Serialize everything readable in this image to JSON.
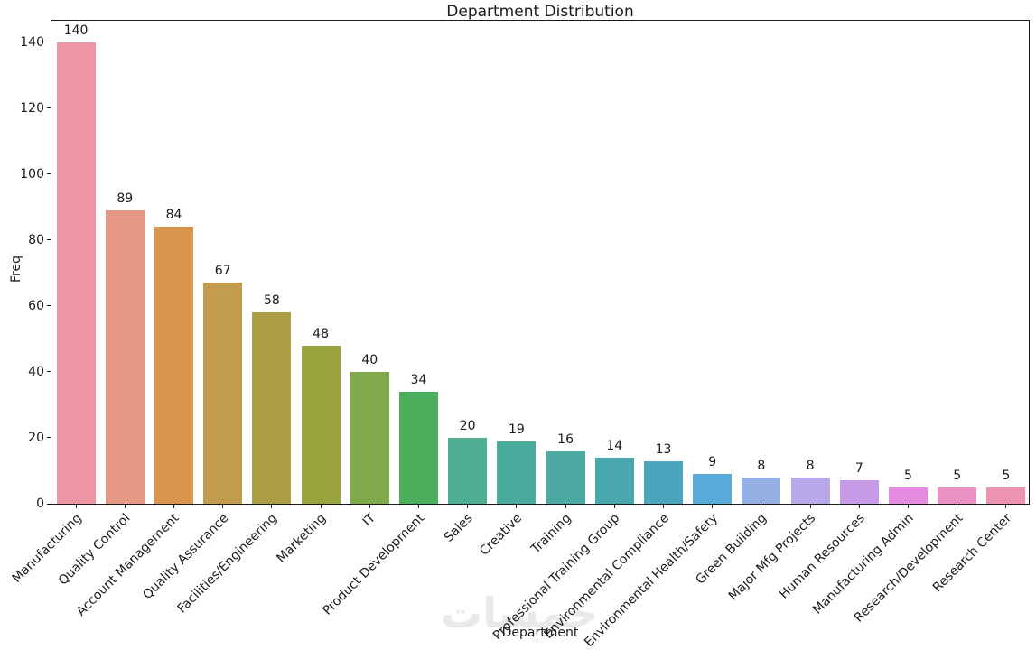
{
  "figure": {
    "title": "Department Distribution",
    "xlabel": "Department",
    "ylabel": "Freq",
    "watermark": "خمسات"
  },
  "chart_data": {
    "type": "bar",
    "title": "Department Distribution",
    "xlabel": "Department",
    "ylabel": "Freq",
    "ylim": [
      0,
      147
    ],
    "yticks": [
      0,
      20,
      40,
      60,
      80,
      100,
      120,
      140
    ],
    "grid": false,
    "legend": "none",
    "x_tick_rotation_deg": 45,
    "value_labels_shown": true,
    "categories": [
      "Manufacturing",
      "Quality Control",
      "Account Management",
      "Quality Assurance",
      "Facilities/Engineering",
      "Marketing",
      "IT",
      "Product Development",
      "Sales",
      "Creative",
      "Training",
      "Professional Training Group",
      "Environmental Compliance",
      "Environmental Health/Safety",
      "Green Building",
      "Major Mfg Projects",
      "Human Resources",
      "Manufacturing Admin",
      "Research/Development",
      "Research Center"
    ],
    "values": [
      140,
      89,
      84,
      67,
      58,
      48,
      40,
      34,
      20,
      19,
      16,
      14,
      13,
      9,
      8,
      8,
      7,
      5,
      5,
      5
    ],
    "bar_colors": [
      "#ec96a4",
      "#e49986",
      "#d8954e",
      "#c29b4c",
      "#ab9e44",
      "#9aa43e",
      "#80aa4c",
      "#4bae5d",
      "#4dae92",
      "#49ac9d",
      "#4caaa2",
      "#48a8ad",
      "#4ba5bd",
      "#58aad8",
      "#95b0e4",
      "#b9a8ea",
      "#c79ae8",
      "#e48ae0",
      "#ea90c5",
      "#ec93af"
    ]
  }
}
